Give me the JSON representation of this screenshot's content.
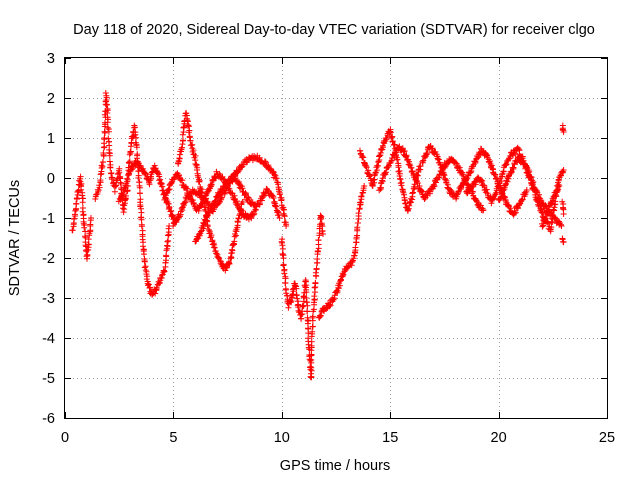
{
  "chart_data": {
    "type": "scatter",
    "title": "Day 118 of 2020, Sidereal Day-to-day VTEC variation (SDTVAR) for receiver clgo",
    "xlabel": "GPS time / hours",
    "ylabel": "SDTVAR / TECUs",
    "xlim": [
      0,
      25
    ],
    "ylim": [
      -6,
      3
    ],
    "xticks": [
      0,
      5,
      10,
      15,
      20,
      25
    ],
    "yticks": [
      -6,
      -5,
      -4,
      -3,
      -2,
      -1,
      0,
      1,
      2,
      3
    ],
    "x_tick_labels": [
      "0",
      "5",
      "10",
      "15",
      "20",
      "25"
    ],
    "y_tick_labels": [
      "-6",
      "-5",
      "-4",
      "-3",
      "-2",
      "-1",
      "0",
      "1",
      "2",
      "3"
    ],
    "grid": true,
    "marker": "+",
    "marker_color": "#ff0000",
    "series": [
      {
        "name": "SDTVAR",
        "tracks": [
          [
            [
              0.35,
              -1.3
            ],
            [
              0.5,
              -0.8
            ],
            [
              0.6,
              -0.3
            ],
            [
              0.7,
              0.0
            ],
            [
              0.8,
              -0.5
            ],
            [
              0.9,
              -1.3
            ],
            [
              1.0,
              -2.0
            ],
            [
              1.1,
              -1.6
            ],
            [
              1.2,
              -1.0
            ]
          ],
          [
            [
              1.4,
              -0.5
            ],
            [
              1.6,
              -0.2
            ],
            [
              1.8,
              0.7
            ],
            [
              1.85,
              1.5
            ],
            [
              1.9,
              2.1
            ],
            [
              2.0,
              1.2
            ],
            [
              2.1,
              0.2
            ],
            [
              2.3,
              -0.3
            ],
            [
              2.5,
              0.2
            ],
            [
              2.7,
              -0.8
            ],
            [
              2.9,
              -0.2
            ]
          ],
          [
            [
              2.9,
              0.1
            ],
            [
              3.0,
              0.6
            ],
            [
              3.1,
              1.0
            ],
            [
              3.2,
              1.3
            ],
            [
              3.3,
              0.8
            ],
            [
              3.4,
              0.0
            ],
            [
              3.5,
              -0.8
            ],
            [
              3.6,
              -1.6
            ],
            [
              3.7,
              -2.2
            ],
            [
              3.8,
              -2.6
            ],
            [
              4.0,
              -2.9
            ],
            [
              4.2,
              -2.8
            ],
            [
              4.4,
              -2.5
            ],
            [
              4.6,
              -2.3
            ],
            [
              4.7,
              -1.8
            ],
            [
              4.8,
              -1.2
            ]
          ],
          [
            [
              2.5,
              -0.6
            ],
            [
              2.8,
              -0.2
            ],
            [
              3.0,
              0.2
            ],
            [
              3.3,
              0.4
            ],
            [
              3.6,
              0.2
            ],
            [
              3.9,
              -0.1
            ],
            [
              4.1,
              0.3
            ],
            [
              4.3,
              0.1
            ],
            [
              4.5,
              -0.3
            ],
            [
              4.7,
              -0.6
            ],
            [
              4.9,
              -0.9
            ],
            [
              5.1,
              -1.1
            ]
          ],
          [
            [
              5.2,
              0.3
            ],
            [
              5.4,
              0.8
            ],
            [
              5.5,
              1.4
            ],
            [
              5.6,
              1.6
            ],
            [
              5.7,
              1.3
            ],
            [
              5.8,
              0.9
            ],
            [
              6.0,
              0.5
            ],
            [
              6.2,
              -0.1
            ],
            [
              6.4,
              -0.6
            ],
            [
              6.6,
              -1.2
            ],
            [
              6.8,
              -1.6
            ],
            [
              7.0,
              -1.9
            ],
            [
              7.2,
              -2.1
            ],
            [
              7.4,
              -2.3
            ],
            [
              7.6,
              -2.1
            ],
            [
              7.8,
              -1.6
            ],
            [
              8.0,
              -1.0
            ],
            [
              8.2,
              -0.6
            ]
          ],
          [
            [
              4.6,
              -0.5
            ],
            [
              4.9,
              -0.1
            ],
            [
              5.2,
              0.1
            ],
            [
              5.5,
              -0.2
            ],
            [
              5.8,
              -0.5
            ],
            [
              6.1,
              -0.8
            ],
            [
              6.4,
              -0.6
            ],
            [
              6.7,
              -0.2
            ],
            [
              7.0,
              0.1
            ],
            [
              7.3,
              0.0
            ],
            [
              7.6,
              -0.3
            ],
            [
              7.9,
              -0.6
            ],
            [
              8.2,
              -0.9
            ],
            [
              8.5,
              -1.0
            ],
            [
              8.8,
              -0.8
            ]
          ],
          [
            [
              5.0,
              -1.2
            ],
            [
              5.3,
              -0.9
            ],
            [
              5.6,
              -0.5
            ],
            [
              5.9,
              -0.3
            ],
            [
              6.2,
              -0.4
            ],
            [
              6.5,
              -0.6
            ],
            [
              6.8,
              -0.8
            ],
            [
              7.1,
              -0.6
            ],
            [
              7.4,
              -0.3
            ],
            [
              7.7,
              0.0
            ],
            [
              8.0,
              0.2
            ],
            [
              8.3,
              0.4
            ],
            [
              8.6,
              0.5
            ],
            [
              8.9,
              0.5
            ],
            [
              9.2,
              0.4
            ],
            [
              9.5,
              0.2
            ],
            [
              9.8,
              -0.1
            ],
            [
              10.0,
              -0.6
            ],
            [
              10.2,
              -1.2
            ]
          ],
          [
            [
              6.0,
              -1.6
            ],
            [
              6.3,
              -1.3
            ],
            [
              6.6,
              -0.9
            ],
            [
              6.9,
              -0.6
            ],
            [
              7.2,
              -0.3
            ],
            [
              7.5,
              -0.1
            ],
            [
              7.8,
              0.0
            ],
            [
              8.1,
              -0.2
            ],
            [
              8.4,
              -0.5
            ],
            [
              8.7,
              -0.7
            ],
            [
              9.0,
              -0.6
            ],
            [
              9.3,
              -0.3
            ],
            [
              9.6,
              -0.5
            ],
            [
              9.9,
              -1.0
            ]
          ],
          [
            [
              10.0,
              -1.5
            ],
            [
              10.1,
              -2.2
            ],
            [
              10.2,
              -2.8
            ],
            [
              10.3,
              -3.2
            ],
            [
              10.45,
              -3.0
            ],
            [
              10.6,
              -2.6
            ],
            [
              10.75,
              -3.2
            ],
            [
              10.9,
              -3.5
            ],
            [
              11.0,
              -3.1
            ],
            [
              11.1,
              -2.5
            ],
            [
              11.2,
              -3.6
            ],
            [
              11.25,
              -4.2
            ],
            [
              11.3,
              -4.6
            ],
            [
              11.35,
              -5.0
            ],
            [
              11.4,
              -3.8
            ],
            [
              11.5,
              -3.0
            ],
            [
              11.6,
              -2.3
            ],
            [
              11.7,
              -1.6
            ],
            [
              11.8,
              -0.9
            ],
            [
              11.9,
              -1.4
            ]
          ],
          [
            [
              11.7,
              -3.5
            ],
            [
              11.9,
              -3.3
            ],
            [
              12.1,
              -3.2
            ],
            [
              12.3,
              -3.1
            ],
            [
              12.5,
              -2.9
            ],
            [
              12.7,
              -2.6
            ],
            [
              12.9,
              -2.3
            ],
            [
              13.1,
              -2.2
            ],
            [
              13.3,
              -2.1
            ],
            [
              13.4,
              -1.8
            ],
            [
              13.5,
              -1.2
            ],
            [
              13.6,
              -0.7
            ],
            [
              13.7,
              -0.4
            ],
            [
              13.8,
              -0.2
            ]
          ],
          [
            [
              13.6,
              0.7
            ],
            [
              13.8,
              0.4
            ],
            [
              14.0,
              0.1
            ],
            [
              14.2,
              -0.2
            ],
            [
              14.4,
              0.3
            ],
            [
              14.6,
              0.7
            ],
            [
              14.8,
              1.0
            ],
            [
              15.0,
              1.2
            ],
            [
              15.2,
              0.8
            ],
            [
              15.4,
              0.2
            ],
            [
              15.6,
              -0.4
            ],
            [
              15.8,
              -0.8
            ],
            [
              16.0,
              -0.5
            ],
            [
              16.2,
              0.0
            ],
            [
              16.4,
              0.3
            ]
          ],
          [
            [
              14.5,
              -0.3
            ],
            [
              14.8,
              0.2
            ],
            [
              15.1,
              0.5
            ],
            [
              15.4,
              0.8
            ],
            [
              15.7,
              0.6
            ],
            [
              16.0,
              0.2
            ],
            [
              16.3,
              -0.2
            ],
            [
              16.6,
              -0.5
            ],
            [
              16.9,
              -0.3
            ],
            [
              17.2,
              0.0
            ],
            [
              17.5,
              0.3
            ],
            [
              17.8,
              0.5
            ],
            [
              18.1,
              0.3
            ],
            [
              18.4,
              0.0
            ],
            [
              18.7,
              -0.3
            ],
            [
              19.0,
              -0.6
            ],
            [
              19.3,
              -0.8
            ]
          ],
          [
            [
              16.5,
              0.4
            ],
            [
              16.8,
              0.8
            ],
            [
              17.1,
              0.6
            ],
            [
              17.4,
              0.2
            ],
            [
              17.7,
              -0.3
            ],
            [
              18.0,
              -0.5
            ],
            [
              18.3,
              -0.2
            ],
            [
              18.6,
              0.1
            ],
            [
              18.9,
              0.4
            ],
            [
              19.2,
              0.7
            ],
            [
              19.5,
              0.5
            ],
            [
              19.8,
              0.1
            ],
            [
              20.1,
              -0.3
            ],
            [
              20.4,
              -0.7
            ],
            [
              20.7,
              -0.9
            ],
            [
              21.0,
              -0.6
            ],
            [
              21.3,
              -0.3
            ]
          ],
          [
            [
              18.5,
              -0.4
            ],
            [
              18.8,
              -0.2
            ],
            [
              19.1,
              0.0
            ],
            [
              19.4,
              -0.3
            ],
            [
              19.7,
              -0.6
            ],
            [
              20.0,
              -0.2
            ],
            [
              20.3,
              0.3
            ],
            [
              20.6,
              0.6
            ],
            [
              20.9,
              0.7
            ],
            [
              21.2,
              0.4
            ],
            [
              21.5,
              0.0
            ],
            [
              21.8,
              -0.4
            ],
            [
              22.1,
              -0.7
            ],
            [
              22.4,
              -0.9
            ],
            [
              22.7,
              -1.1
            ],
            [
              22.9,
              -1.2
            ]
          ],
          [
            [
              20.0,
              -0.6
            ],
            [
              20.3,
              -0.2
            ],
            [
              20.6,
              0.2
            ],
            [
              20.9,
              0.5
            ],
            [
              21.2,
              0.3
            ],
            [
              21.5,
              -0.1
            ],
            [
              21.8,
              -0.6
            ],
            [
              22.1,
              -1.0
            ],
            [
              22.4,
              -1.3
            ],
            [
              22.6,
              -0.6
            ],
            [
              22.8,
              0.0
            ],
            [
              23.0,
              0.2
            ]
          ],
          [
            [
              22.0,
              -1.2
            ],
            [
              22.3,
              -0.8
            ],
            [
              22.6,
              -0.4
            ],
            [
              22.8,
              -0.2
            ]
          ],
          [
            [
              22.95,
              1.3
            ],
            [
              23.0,
              1.15
            ]
          ],
          [
            [
              22.95,
              -0.6
            ],
            [
              23.0,
              -0.9
            ]
          ],
          [
            [
              22.95,
              -1.5
            ],
            [
              23.0,
              -1.6
            ]
          ]
        ]
      }
    ]
  }
}
